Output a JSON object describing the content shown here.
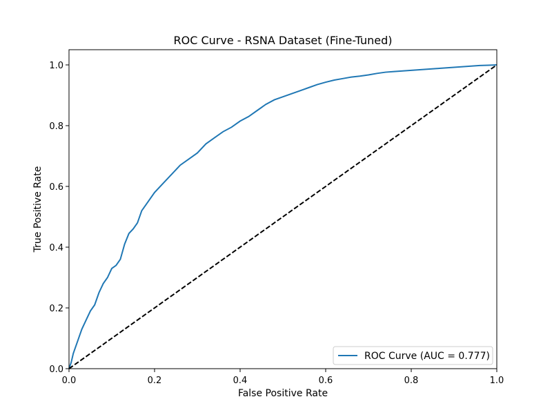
{
  "chart_data": {
    "type": "line",
    "title": "ROC Curve - RSNA Dataset (Fine-Tuned)",
    "xlabel": "False Positive Rate",
    "ylabel": "True Positive Rate",
    "xlim": [
      0.0,
      1.0
    ],
    "ylim": [
      0.0,
      1.05
    ],
    "x_ticks": [
      0.0,
      0.2,
      0.4,
      0.6,
      0.8,
      1.0
    ],
    "y_ticks": [
      0.0,
      0.2,
      0.4,
      0.6,
      0.8,
      1.0
    ],
    "x_tick_labels": [
      "0.0",
      "0.2",
      "0.4",
      "0.6",
      "0.8",
      "1.0"
    ],
    "y_tick_labels": [
      "0.0",
      "0.2",
      "0.4",
      "0.6",
      "0.8",
      "1.0"
    ],
    "grid": false,
    "legend_position": "lower-right",
    "series": [
      {
        "name": "ROC Curve (AUC = 0.777)",
        "color": "#1f77b4",
        "style": "solid",
        "x": [
          0.0,
          0.005,
          0.01,
          0.015,
          0.02,
          0.025,
          0.03,
          0.04,
          0.05,
          0.06,
          0.07,
          0.08,
          0.09,
          0.1,
          0.11,
          0.12,
          0.13,
          0.14,
          0.15,
          0.16,
          0.17,
          0.18,
          0.2,
          0.22,
          0.24,
          0.26,
          0.28,
          0.3,
          0.32,
          0.34,
          0.36,
          0.38,
          0.4,
          0.42,
          0.44,
          0.46,
          0.48,
          0.5,
          0.52,
          0.54,
          0.56,
          0.58,
          0.6,
          0.62,
          0.64,
          0.66,
          0.68,
          0.7,
          0.72,
          0.74,
          0.76,
          0.78,
          0.8,
          0.82,
          0.84,
          0.86,
          0.88,
          0.9,
          0.92,
          0.94,
          0.96,
          0.98,
          1.0
        ],
        "y": [
          0.0,
          0.02,
          0.05,
          0.07,
          0.09,
          0.11,
          0.13,
          0.16,
          0.19,
          0.21,
          0.25,
          0.28,
          0.3,
          0.33,
          0.34,
          0.36,
          0.41,
          0.445,
          0.46,
          0.48,
          0.52,
          0.54,
          0.58,
          0.61,
          0.64,
          0.67,
          0.69,
          0.71,
          0.74,
          0.76,
          0.78,
          0.795,
          0.815,
          0.83,
          0.85,
          0.87,
          0.885,
          0.895,
          0.905,
          0.915,
          0.925,
          0.935,
          0.943,
          0.95,
          0.955,
          0.96,
          0.963,
          0.967,
          0.972,
          0.976,
          0.978,
          0.98,
          0.982,
          0.984,
          0.986,
          0.988,
          0.99,
          0.992,
          0.994,
          0.996,
          0.998,
          0.999,
          1.0
        ]
      },
      {
        "name": "",
        "color": "#000000",
        "style": "dashed",
        "x": [
          0.0,
          1.0
        ],
        "y": [
          0.0,
          1.0
        ]
      }
    ]
  }
}
